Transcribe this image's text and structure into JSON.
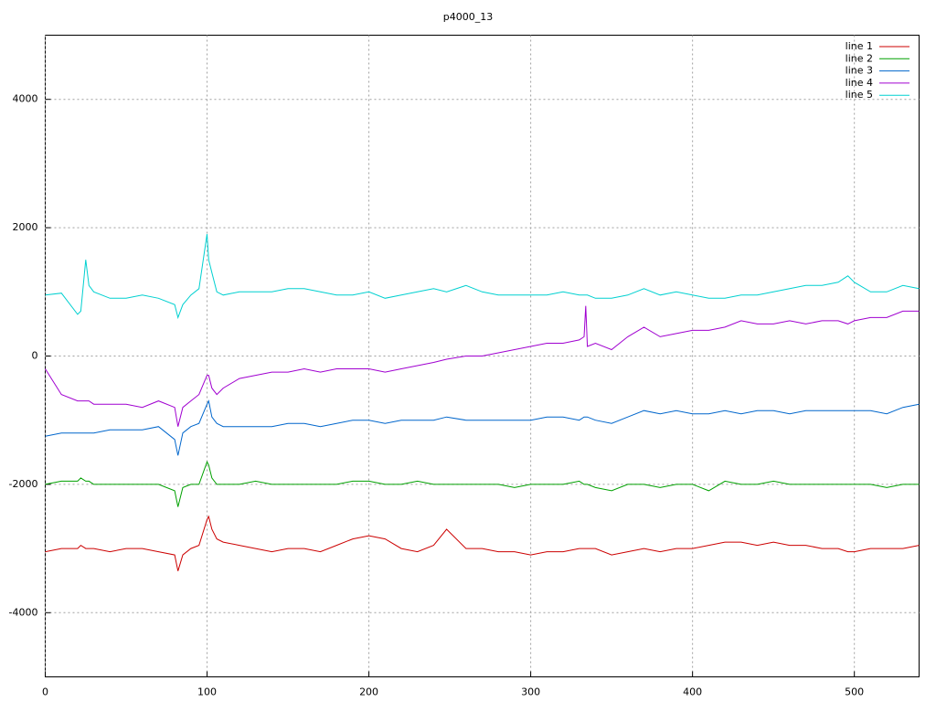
{
  "chart_data": {
    "type": "line",
    "title": "p4000_13",
    "x": [
      0,
      10,
      20,
      22,
      25,
      27,
      30,
      40,
      50,
      60,
      70,
      80,
      82,
      85,
      90,
      95,
      100,
      101,
      103,
      106,
      110,
      120,
      130,
      140,
      150,
      160,
      170,
      180,
      190,
      200,
      210,
      220,
      230,
      240,
      248,
      260,
      270,
      280,
      290,
      300,
      310,
      320,
      330,
      333,
      334,
      335,
      340,
      350,
      360,
      370,
      380,
      390,
      400,
      410,
      420,
      430,
      440,
      450,
      460,
      470,
      480,
      490,
      496,
      500,
      510,
      520,
      530,
      540
    ],
    "series": [
      {
        "name": "line 1",
        "color": "#cc0000",
        "values": [
          -3050,
          -3000,
          -3000,
          -2950,
          -3000,
          -3000,
          -3000,
          -3050,
          -3000,
          -3000,
          -3050,
          -3100,
          -3350,
          -3100,
          -3000,
          -2950,
          -2550,
          -2500,
          -2700,
          -2850,
          -2900,
          -2950,
          -3000,
          -3050,
          -3000,
          -3000,
          -3050,
          -2950,
          -2850,
          -2800,
          -2850,
          -3000,
          -3050,
          -2950,
          -2700,
          -3000,
          -3000,
          -3050,
          -3050,
          -3100,
          -3050,
          -3050,
          -3000,
          -3000,
          -3000,
          -3000,
          -3000,
          -3100,
          -3050,
          -3000,
          -3050,
          -3000,
          -3000,
          -2950,
          -2900,
          -2900,
          -2950,
          -2900,
          -2950,
          -2950,
          -3000,
          -3000,
          -3050,
          -3050,
          -3000,
          -3000,
          -3000,
          -2950
        ]
      },
      {
        "name": "line 2",
        "color": "#00a000",
        "values": [
          -2000,
          -1950,
          -1950,
          -1900,
          -1950,
          -1950,
          -2000,
          -2000,
          -2000,
          -2000,
          -2000,
          -2100,
          -2350,
          -2050,
          -2000,
          -2000,
          -1650,
          -1700,
          -1900,
          -2000,
          -2000,
          -2000,
          -1950,
          -2000,
          -2000,
          -2000,
          -2000,
          -2000,
          -1950,
          -1950,
          -2000,
          -2000,
          -1950,
          -2000,
          -2000,
          -2000,
          -2000,
          -2000,
          -2050,
          -2000,
          -2000,
          -2000,
          -1950,
          -2000,
          -2000,
          -2000,
          -2050,
          -2100,
          -2000,
          -2000,
          -2050,
          -2000,
          -2000,
          -2100,
          -1950,
          -2000,
          -2000,
          -1950,
          -2000,
          -2000,
          -2000,
          -2000,
          -2000,
          -2000,
          -2000,
          -2050,
          -2000,
          -2000
        ]
      },
      {
        "name": "line 3",
        "color": "#0066cc",
        "values": [
          -1250,
          -1200,
          -1200,
          -1200,
          -1200,
          -1200,
          -1200,
          -1150,
          -1150,
          -1150,
          -1100,
          -1300,
          -1550,
          -1200,
          -1100,
          -1050,
          -750,
          -700,
          -950,
          -1050,
          -1100,
          -1100,
          -1100,
          -1100,
          -1050,
          -1050,
          -1100,
          -1050,
          -1000,
          -1000,
          -1050,
          -1000,
          -1000,
          -1000,
          -950,
          -1000,
          -1000,
          -1000,
          -1000,
          -1000,
          -950,
          -950,
          -1000,
          -950,
          -950,
          -950,
          -1000,
          -1050,
          -950,
          -850,
          -900,
          -850,
          -900,
          -900,
          -850,
          -900,
          -850,
          -850,
          -900,
          -850,
          -850,
          -850,
          -850,
          -850,
          -850,
          -900,
          -800,
          -750
        ]
      },
      {
        "name": "line 4",
        "color": "#a000d0",
        "values": [
          -200,
          -600,
          -700,
          -700,
          -700,
          -700,
          -750,
          -750,
          -750,
          -800,
          -700,
          -800,
          -1100,
          -800,
          -700,
          -600,
          -300,
          -300,
          -500,
          -600,
          -500,
          -350,
          -300,
          -250,
          -250,
          -200,
          -250,
          -200,
          -200,
          -200,
          -250,
          -200,
          -150,
          -100,
          -50,
          0,
          0,
          50,
          100,
          150,
          200,
          200,
          250,
          300,
          780,
          150,
          200,
          100,
          300,
          450,
          300,
          350,
          400,
          400,
          450,
          550,
          500,
          500,
          550,
          500,
          550,
          550,
          500,
          550,
          600,
          600,
          700,
          700
        ]
      },
      {
        "name": "line 5",
        "color": "#00d0d0",
        "values": [
          950,
          980,
          650,
          700,
          1500,
          1100,
          1000,
          900,
          900,
          950,
          900,
          800,
          600,
          800,
          950,
          1050,
          1900,
          1500,
          1300,
          1000,
          950,
          1000,
          1000,
          1000,
          1050,
          1050,
          1000,
          950,
          950,
          1000,
          900,
          950,
          1000,
          1050,
          1000,
          1100,
          1000,
          950,
          950,
          950,
          950,
          1000,
          950,
          950,
          950,
          950,
          900,
          900,
          950,
          1050,
          950,
          1000,
          950,
          900,
          900,
          950,
          950,
          1000,
          1050,
          1100,
          1100,
          1150,
          1250,
          1150,
          1000,
          1000,
          1100,
          1050
        ]
      }
    ],
    "xlim": [
      0,
      540
    ],
    "ylim": [
      -5000,
      5000
    ],
    "xticks": [
      0,
      100,
      200,
      300,
      400,
      500
    ],
    "yticks": [
      -4000,
      -2000,
      0,
      2000,
      4000
    ],
    "grid": true,
    "legend": "top-right"
  }
}
